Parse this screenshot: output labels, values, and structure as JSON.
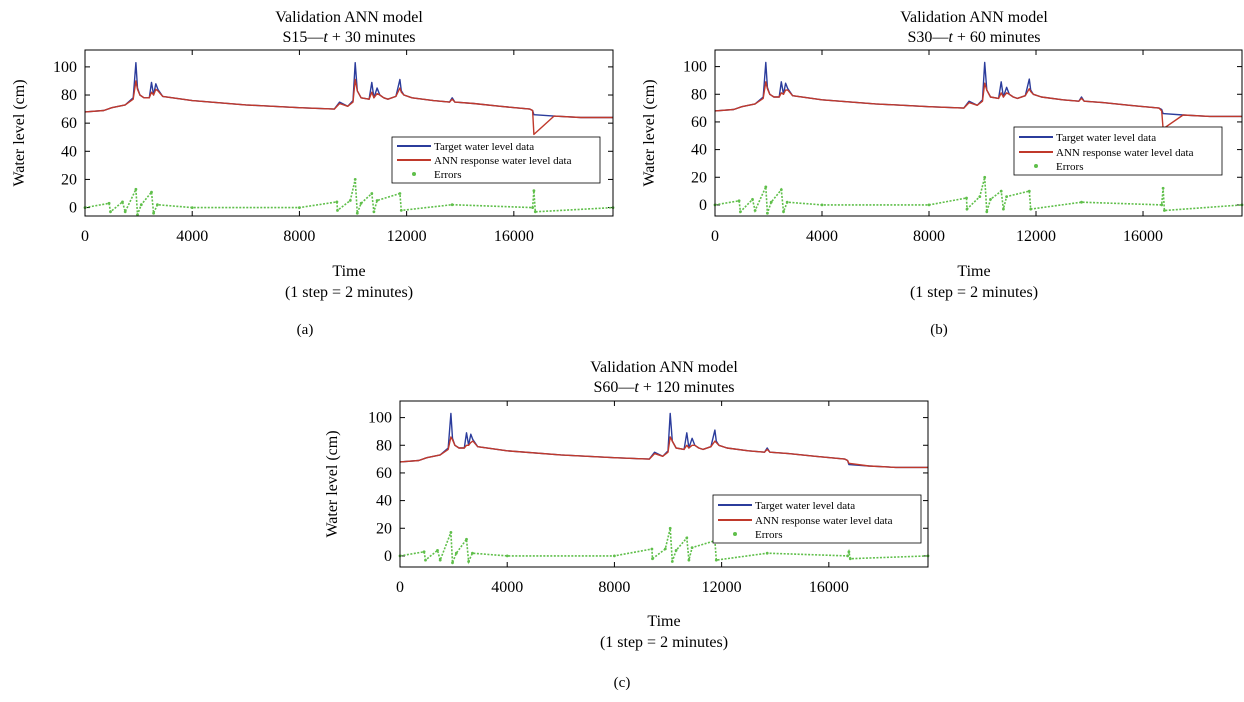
{
  "chart_data": [
    {
      "type": "line",
      "panel_label": "(a)",
      "title_line1": "Validation ANN model",
      "title_line2_prefix": "S15—",
      "title_line2_var": "t",
      "title_line2_suffix": " + 30 minutes",
      "xlabel": "Time",
      "xlabel_sub": "(1 step = 2 minutes)",
      "ylabel": "Water level (cm)",
      "xlim": [
        0,
        19700
      ],
      "ylim": [
        -6,
        112
      ],
      "xticks": [
        0,
        4000,
        8000,
        12000,
        16000
      ],
      "yticks": [
        0,
        20,
        40,
        60,
        80,
        100
      ],
      "grid": false,
      "legend_position": "center-right",
      "series": [
        {
          "name": "Target water level data",
          "color": "#2b3c9c",
          "x": [
            0,
            700,
            1000,
            1500,
            1800,
            1900,
            1960,
            2050,
            2200,
            2400,
            2480,
            2560,
            2640,
            2720,
            2900,
            4000,
            6000,
            8000,
            9300,
            9500,
            9800,
            10000,
            10080,
            10160,
            10300,
            10600,
            10700,
            10780,
            10900,
            11000,
            11150,
            11300,
            11600,
            11750,
            11800,
            11900,
            12200,
            13000,
            13600,
            13700,
            13800,
            14500,
            15500,
            16600,
            16700,
            16750,
            17500,
            18500,
            19700
          ],
          "y": [
            68,
            69,
            71,
            73,
            78,
            103,
            85,
            80,
            78,
            78,
            89,
            80,
            88,
            84,
            79,
            76,
            73,
            71,
            70,
            75,
            72,
            76,
            103,
            83,
            78,
            77,
            89,
            78,
            85,
            80,
            78,
            77,
            79,
            91,
            83,
            80,
            78,
            76,
            75,
            78,
            75,
            74,
            72,
            70,
            69,
            66,
            65,
            64,
            64
          ]
        },
        {
          "name": "ANN response water level data",
          "color": "#c0392b",
          "x": [
            0,
            700,
            1000,
            1500,
            1800,
            1900,
            1960,
            2050,
            2200,
            2400,
            2480,
            2560,
            2640,
            2720,
            2900,
            4000,
            6000,
            8000,
            9300,
            9500,
            9800,
            10000,
            10080,
            10160,
            10300,
            10600,
            10700,
            10780,
            10900,
            11000,
            11150,
            11300,
            11600,
            11750,
            11800,
            11900,
            12200,
            13000,
            13600,
            13700,
            13800,
            14500,
            15500,
            16600,
            16700,
            16750,
            17500,
            18500,
            19700
          ],
          "y": [
            68,
            69,
            71,
            73,
            77,
            90,
            84,
            80,
            78,
            78,
            82,
            80,
            84,
            83,
            79,
            76,
            73,
            71,
            70,
            74,
            72,
            75,
            91,
            83,
            78,
            77,
            82,
            78,
            81,
            80,
            78,
            77,
            79,
            85,
            82,
            80,
            78,
            76,
            75,
            77,
            75,
            74,
            72,
            70,
            69,
            52,
            65,
            64,
            64
          ]
        },
        {
          "name": "Errors",
          "color": "#5fbf4a",
          "x": [
            0,
            900,
            950,
            1400,
            1500,
            1900,
            1960,
            2100,
            2480,
            2560,
            2700,
            4000,
            8000,
            9400,
            9420,
            9900,
            10080,
            10160,
            10300,
            10700,
            10780,
            10900,
            11750,
            11800,
            13700,
            16700,
            16750,
            16800,
            19700
          ],
          "y": [
            0,
            3,
            -3,
            4,
            -3,
            13,
            -5,
            2,
            11,
            -4,
            2,
            0,
            0,
            4,
            -2,
            5,
            20,
            -4,
            3,
            10,
            -3,
            5,
            10,
            -2,
            2,
            0,
            12,
            -3,
            0
          ]
        }
      ]
    },
    {
      "type": "line",
      "panel_label": "(b)",
      "title_line1": "Validation ANN model",
      "title_line2_prefix": "S30—",
      "title_line2_var": "t",
      "title_line2_suffix": " + 60 minutes",
      "xlabel": "Time",
      "xlabel_sub": "(1 step = 2 minutes)",
      "ylabel": "Water level (cm)",
      "xlim": [
        0,
        19700
      ],
      "ylim": [
        -8,
        112
      ],
      "xticks": [
        0,
        4000,
        8000,
        12000,
        16000
      ],
      "yticks": [
        0,
        20,
        40,
        60,
        80,
        100
      ],
      "grid": false,
      "legend_position": "center-right",
      "series": [
        {
          "name": "Target water level data",
          "color": "#2b3c9c",
          "x": [
            0,
            700,
            1000,
            1500,
            1800,
            1900,
            1960,
            2050,
            2200,
            2400,
            2480,
            2560,
            2640,
            2720,
            2900,
            4000,
            6000,
            8000,
            9300,
            9500,
            9800,
            10000,
            10080,
            10160,
            10300,
            10600,
            10700,
            10780,
            10900,
            11000,
            11150,
            11300,
            11600,
            11750,
            11800,
            11900,
            12200,
            13000,
            13600,
            13700,
            13800,
            14500,
            15500,
            16600,
            16700,
            16750,
            17500,
            18500,
            19700
          ],
          "y": [
            68,
            69,
            71,
            73,
            78,
            103,
            85,
            80,
            78,
            78,
            89,
            80,
            88,
            84,
            79,
            76,
            73,
            71,
            70,
            75,
            72,
            76,
            103,
            83,
            78,
            77,
            89,
            78,
            85,
            80,
            78,
            77,
            79,
            91,
            83,
            80,
            78,
            76,
            75,
            78,
            75,
            74,
            72,
            70,
            69,
            66,
            65,
            64,
            64
          ]
        },
        {
          "name": "ANN response water level data",
          "color": "#c0392b",
          "x": [
            0,
            700,
            1000,
            1500,
            1800,
            1900,
            1960,
            2050,
            2200,
            2400,
            2480,
            2560,
            2640,
            2720,
            2900,
            4000,
            6000,
            8000,
            9300,
            9500,
            9800,
            10000,
            10080,
            10160,
            10300,
            10600,
            10700,
            10780,
            10900,
            11000,
            11150,
            11300,
            11600,
            11750,
            11800,
            11900,
            12200,
            13000,
            13600,
            13700,
            13800,
            14500,
            15500,
            16600,
            16700,
            16750,
            17500,
            18500,
            19700
          ],
          "y": [
            68,
            69,
            71,
            73,
            77,
            89,
            84,
            80,
            78,
            78,
            81,
            80,
            83,
            83,
            79,
            76,
            73,
            71,
            70,
            74,
            72,
            75,
            88,
            83,
            78,
            77,
            81,
            78,
            81,
            80,
            78,
            77,
            79,
            84,
            82,
            80,
            78,
            76,
            75,
            77,
            75,
            74,
            72,
            70,
            68,
            55,
            65,
            64,
            64
          ]
        },
        {
          "name": "Errors",
          "color": "#5fbf4a",
          "x": [
            0,
            900,
            950,
            1400,
            1500,
            1900,
            1960,
            2100,
            2480,
            2560,
            2700,
            4000,
            8000,
            9400,
            9420,
            9900,
            10080,
            10160,
            10300,
            10700,
            10780,
            10900,
            11750,
            11800,
            13700,
            16700,
            16750,
            16800,
            19700
          ],
          "y": [
            0,
            3,
            -5,
            4,
            -4,
            13,
            -6,
            2,
            11,
            -5,
            2,
            0,
            0,
            5,
            -3,
            6,
            20,
            -5,
            4,
            10,
            -3,
            6,
            10,
            -3,
            2,
            0,
            12,
            -4,
            0
          ]
        }
      ]
    },
    {
      "type": "line",
      "panel_label": "(c)",
      "title_line1": "Validation ANN model",
      "title_line2_prefix": "S60—",
      "title_line2_var": "t",
      "title_line2_suffix": " + 120 minutes",
      "xlabel": "Time",
      "xlabel_sub": "(1 step = 2 minutes)",
      "ylabel": "Water level (cm)",
      "xlim": [
        0,
        19700
      ],
      "ylim": [
        -8,
        112
      ],
      "xticks": [
        0,
        4000,
        8000,
        12000,
        16000
      ],
      "yticks": [
        0,
        20,
        40,
        60,
        80,
        100
      ],
      "grid": false,
      "legend_position": "center-right",
      "series": [
        {
          "name": "Target water level data",
          "color": "#2b3c9c",
          "x": [
            0,
            700,
            1000,
            1500,
            1800,
            1900,
            1960,
            2050,
            2200,
            2400,
            2480,
            2560,
            2640,
            2720,
            2900,
            4000,
            6000,
            8000,
            9300,
            9500,
            9800,
            10000,
            10080,
            10160,
            10300,
            10600,
            10700,
            10780,
            10900,
            11000,
            11150,
            11300,
            11600,
            11750,
            11800,
            11900,
            12200,
            13000,
            13600,
            13700,
            13800,
            14500,
            15500,
            16600,
            16700,
            16750,
            17500,
            18500,
            19700
          ],
          "y": [
            68,
            69,
            71,
            73,
            78,
            103,
            85,
            80,
            78,
            78,
            89,
            80,
            88,
            84,
            79,
            76,
            73,
            71,
            70,
            75,
            72,
            76,
            103,
            83,
            78,
            77,
            89,
            78,
            85,
            80,
            78,
            77,
            79,
            91,
            83,
            80,
            78,
            76,
            75,
            78,
            75,
            74,
            72,
            70,
            69,
            66,
            65,
            64,
            64
          ]
        },
        {
          "name": "ANN response water level data",
          "color": "#c0392b",
          "x": [
            0,
            700,
            1000,
            1500,
            1800,
            1900,
            1960,
            2050,
            2200,
            2400,
            2480,
            2560,
            2640,
            2720,
            2900,
            4000,
            6000,
            8000,
            9300,
            9500,
            9800,
            10000,
            10080,
            10160,
            10300,
            10600,
            10700,
            10780,
            10900,
            11000,
            11150,
            11300,
            11600,
            11750,
            11800,
            11900,
            12200,
            13000,
            13600,
            13700,
            13800,
            14500,
            15500,
            16600,
            16700,
            16750,
            17500,
            18500,
            19700
          ],
          "y": [
            68,
            69,
            71,
            73,
            77,
            86,
            84,
            80,
            78,
            78,
            80,
            80,
            82,
            83,
            79,
            76,
            73,
            71,
            70,
            74,
            72,
            75,
            86,
            83,
            78,
            77,
            80,
            78,
            80,
            80,
            78,
            77,
            79,
            83,
            82,
            80,
            78,
            76,
            75,
            77,
            75,
            74,
            72,
            70,
            69,
            67,
            65,
            64,
            64
          ]
        },
        {
          "name": "Errors",
          "color": "#5fbf4a",
          "x": [
            0,
            900,
            950,
            1400,
            1500,
            1900,
            1960,
            2100,
            2480,
            2560,
            2700,
            4000,
            8000,
            9400,
            9420,
            9900,
            10080,
            10160,
            10300,
            10700,
            10780,
            10900,
            11750,
            11800,
            13700,
            16700,
            16750,
            16800,
            19700
          ],
          "y": [
            0,
            3,
            -3,
            4,
            -3,
            17,
            -5,
            2,
            12,
            -4,
            2,
            0,
            0,
            5,
            -2,
            5,
            20,
            -4,
            4,
            13,
            -3,
            6,
            11,
            -3,
            2,
            0,
            3,
            -2,
            0
          ]
        }
      ]
    }
  ]
}
